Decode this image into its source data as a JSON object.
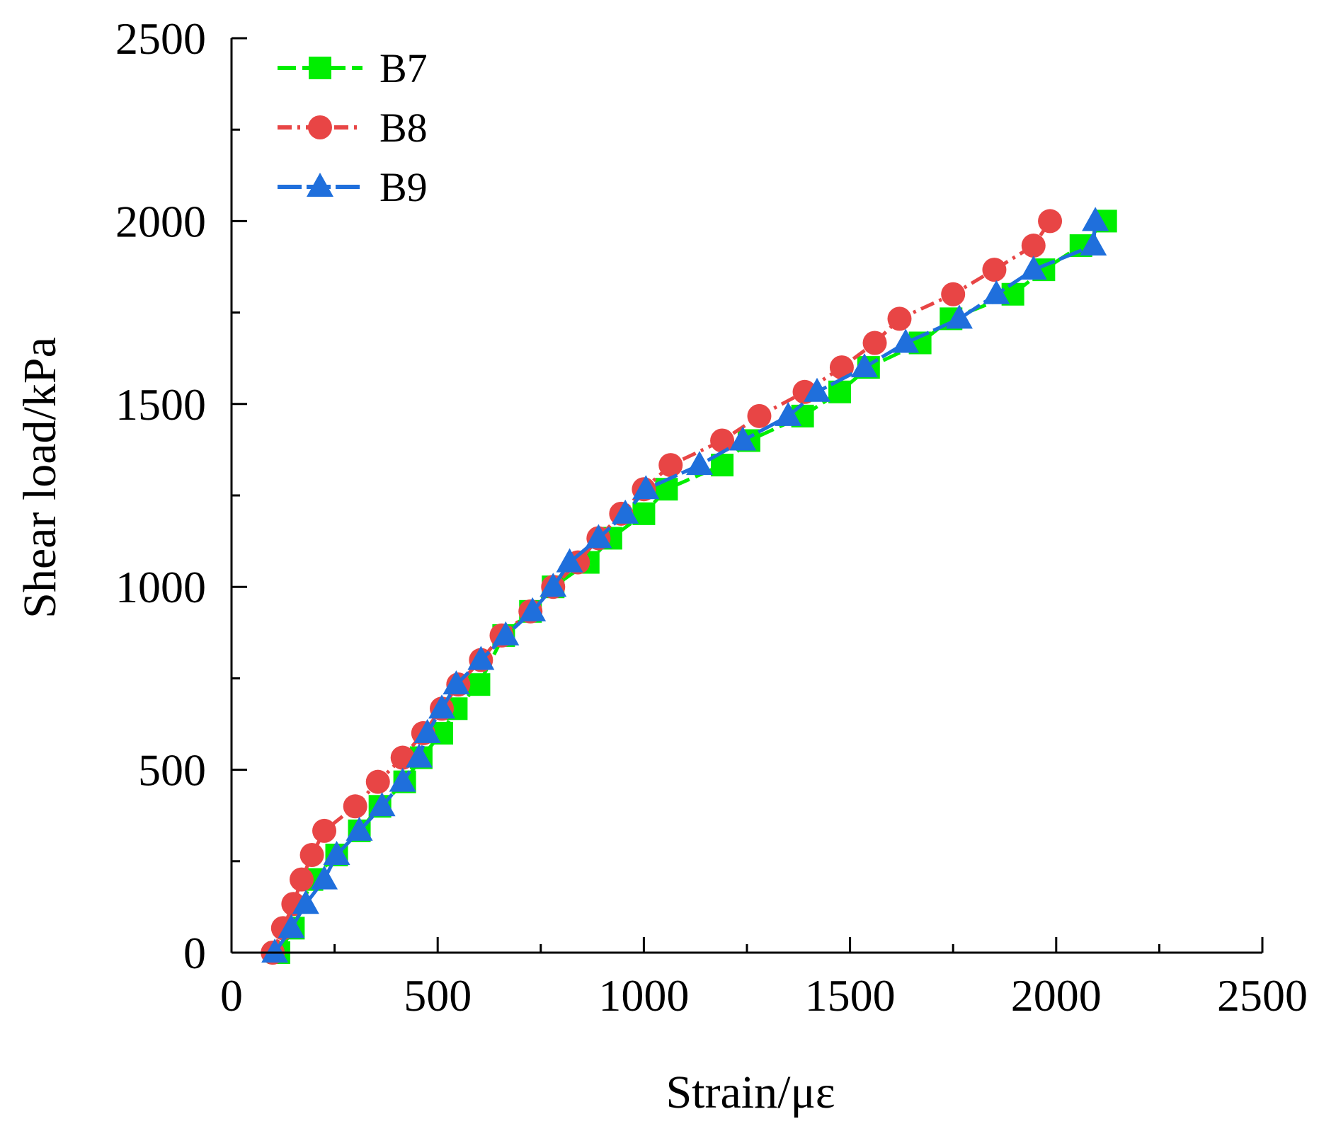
{
  "chart_data": {
    "type": "line",
    "title": "",
    "xlabel": "Strain/με",
    "ylabel": "Shear load/kPa",
    "xlim": [
      0,
      2500
    ],
    "ylim": [
      0,
      2500
    ],
    "xticks": [
      0,
      500,
      1000,
      1500,
      2000,
      2500
    ],
    "yticks": [
      0,
      500,
      1000,
      1500,
      2000,
      2500
    ],
    "grid": false,
    "legend_position": "top-left",
    "series": [
      {
        "name": "B7",
        "color": "#00ee00",
        "marker": "square",
        "points": [
          [
            115,
            0
          ],
          [
            150,
            67
          ],
          [
            195,
            200
          ],
          [
            255,
            267
          ],
          [
            310,
            333
          ],
          [
            360,
            400
          ],
          [
            420,
            467
          ],
          [
            460,
            533
          ],
          [
            510,
            600
          ],
          [
            545,
            667
          ],
          [
            600,
            733
          ],
          [
            660,
            867
          ],
          [
            725,
            933
          ],
          [
            780,
            1000
          ],
          [
            865,
            1067
          ],
          [
            920,
            1133
          ],
          [
            1000,
            1200
          ],
          [
            1055,
            1267
          ],
          [
            1190,
            1333
          ],
          [
            1255,
            1400
          ],
          [
            1385,
            1467
          ],
          [
            1475,
            1533
          ],
          [
            1545,
            1600
          ],
          [
            1670,
            1667
          ],
          [
            1745,
            1733
          ],
          [
            1895,
            1800
          ],
          [
            1970,
            1867
          ],
          [
            2060,
            1933
          ],
          [
            2120,
            2000
          ]
        ]
      },
      {
        "name": "B8",
        "color": "#e84545",
        "marker": "circle",
        "points": [
          [
            100,
            0
          ],
          [
            125,
            67
          ],
          [
            150,
            133
          ],
          [
            170,
            200
          ],
          [
            195,
            267
          ],
          [
            225,
            333
          ],
          [
            300,
            400
          ],
          [
            355,
            467
          ],
          [
            415,
            533
          ],
          [
            465,
            600
          ],
          [
            510,
            667
          ],
          [
            550,
            733
          ],
          [
            605,
            800
          ],
          [
            655,
            867
          ],
          [
            725,
            933
          ],
          [
            780,
            1000
          ],
          [
            840,
            1067
          ],
          [
            890,
            1133
          ],
          [
            945,
            1200
          ],
          [
            1000,
            1267
          ],
          [
            1065,
            1333
          ],
          [
            1190,
            1400
          ],
          [
            1280,
            1467
          ],
          [
            1390,
            1533
          ],
          [
            1480,
            1600
          ],
          [
            1560,
            1667
          ],
          [
            1620,
            1733
          ],
          [
            1750,
            1800
          ],
          [
            1850,
            1867
          ],
          [
            1945,
            1933
          ],
          [
            1985,
            2000
          ]
        ]
      },
      {
        "name": "B9",
        "color": "#1f6fdc",
        "marker": "triangle",
        "points": [
          [
            105,
            0
          ],
          [
            145,
            67
          ],
          [
            180,
            133
          ],
          [
            225,
            200
          ],
          [
            255,
            267
          ],
          [
            310,
            333
          ],
          [
            365,
            400
          ],
          [
            415,
            467
          ],
          [
            455,
            533
          ],
          [
            475,
            600
          ],
          [
            510,
            667
          ],
          [
            545,
            733
          ],
          [
            605,
            800
          ],
          [
            665,
            867
          ],
          [
            730,
            933
          ],
          [
            780,
            1000
          ],
          [
            820,
            1067
          ],
          [
            890,
            1133
          ],
          [
            955,
            1200
          ],
          [
            1005,
            1267
          ],
          [
            1135,
            1333
          ],
          [
            1240,
            1400
          ],
          [
            1350,
            1467
          ],
          [
            1420,
            1533
          ],
          [
            1535,
            1600
          ],
          [
            1635,
            1667
          ],
          [
            1765,
            1733
          ],
          [
            1855,
            1800
          ],
          [
            1945,
            1867
          ],
          [
            2090,
            1933
          ],
          [
            2095,
            2000
          ]
        ]
      }
    ]
  }
}
